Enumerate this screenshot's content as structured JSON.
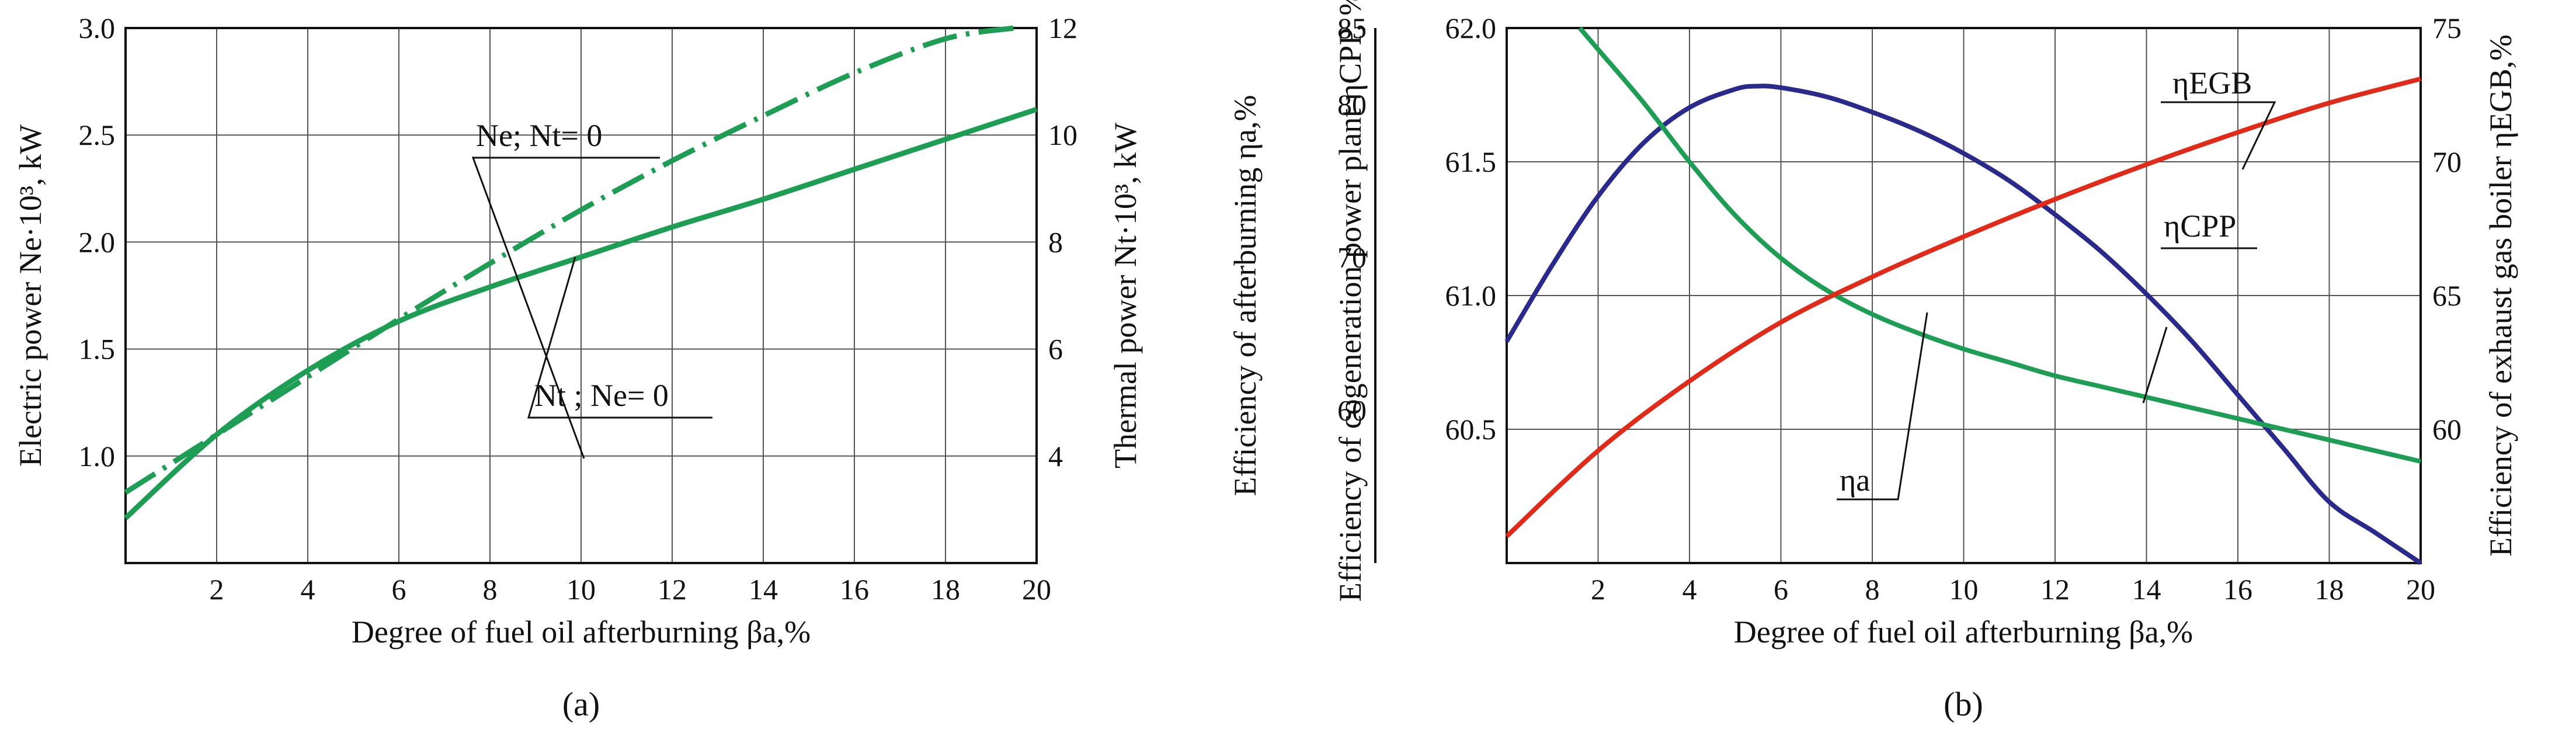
{
  "figure": {
    "captions": [
      "(a)",
      "(b)"
    ]
  },
  "chart_data": [
    {
      "id": "a",
      "type": "line",
      "caption": "(a)",
      "xlabel": "Degree of fuel oil afterburning βa,%",
      "ylabel_left": "Electric power Ne·10³, kW",
      "ylabel_right": "Thermal power Nt·10³, kW",
      "xlim": [
        0,
        20
      ],
      "ylim_left": [
        0.5,
        3.0
      ],
      "ylim_right": [
        2,
        12
      ],
      "x_ticks": [
        2,
        4,
        6,
        8,
        10,
        12,
        14,
        16,
        18,
        20
      ],
      "y_ticks_left": [
        "1.0",
        "1.5",
        "2.0",
        "2.5",
        "3.0"
      ],
      "y_ticks_right": [
        "4",
        "6",
        "8",
        "10",
        "12"
      ],
      "grid": true,
      "colors": {
        "series": "#1e9e55",
        "axes": "#111111",
        "grid": "#555555"
      },
      "series": [
        {
          "name": "Ne; Nt= 0",
          "axis": "left",
          "style": "dashed",
          "x": [
            0,
            2,
            4,
            6,
            8,
            10,
            12,
            14,
            16,
            18,
            19.5
          ],
          "y": [
            0.83,
            1.1,
            1.37,
            1.64,
            1.9,
            2.15,
            2.38,
            2.59,
            2.79,
            2.95,
            3.0
          ]
        },
        {
          "name": "Nt ; Ne= 0",
          "axis": "left",
          "style": "solid",
          "x": [
            0,
            2,
            4,
            6,
            8,
            10,
            12,
            14,
            16,
            18,
            20
          ],
          "y": [
            0.71,
            1.1,
            1.4,
            1.63,
            1.79,
            1.93,
            2.07,
            2.2,
            2.34,
            2.48,
            2.62
          ]
        }
      ],
      "annotations": [
        {
          "label": "Ne; Nt= 0",
          "series": "Ne; Nt= 0"
        },
        {
          "label": "Nt ; Ne= 0",
          "series": "Nt ; Ne= 0"
        }
      ]
    },
    {
      "id": "b",
      "type": "line",
      "caption": "(b)",
      "xlabel": "Degree of fuel oil afterburning βa,%",
      "ylabel_left_outer": "Efficiency of afterburning ηa,%",
      "ylabel_left_inner": "Efficiency of cogeneration power plant ηCPP, %",
      "ylabel_right": "Efficiency of exhaust gas boiler ηEGB,%",
      "xlim": [
        0,
        20
      ],
      "ylim_a": [
        50,
        85
      ],
      "ylim_cpp": [
        60.0,
        62.0
      ],
      "ylim_egb": [
        55,
        75
      ],
      "x_ticks": [
        2,
        4,
        6,
        8,
        10,
        12,
        14,
        16,
        18,
        20
      ],
      "y_ticks_a": [
        "60",
        "70",
        "80",
        "85"
      ],
      "y_ticks_cpp": [
        "60.5",
        "61.0",
        "61.5",
        "62.0"
      ],
      "y_ticks_egb": [
        "60",
        "65",
        "70",
        "75"
      ],
      "grid": true,
      "colors": {
        "eta_a": "#2a2a8c",
        "eta_cpp": "#1e9e55",
        "eta_egb": "#e02a1a",
        "axes": "#111111",
        "grid": "#555555"
      },
      "series": [
        {
          "name": "ηa",
          "axis": "a",
          "color": "#2a2a8c",
          "x": [
            0,
            1,
            2,
            3,
            4,
            5,
            5.5,
            6,
            7,
            8,
            9,
            10,
            11,
            12,
            13,
            14,
            15,
            16,
            17,
            18,
            19,
            20
          ],
          "y": [
            64.5,
            69.5,
            74.0,
            77.5,
            79.8,
            81.0,
            81.2,
            81.1,
            80.5,
            79.5,
            78.3,
            76.8,
            75.0,
            72.8,
            70.4,
            67.6,
            64.5,
            61.0,
            57.5,
            54.0,
            52.0,
            50.0
          ]
        },
        {
          "name": "ηCPP",
          "axis": "cpp",
          "color": "#1e9e55",
          "x": [
            1.6,
            2,
            3,
            4,
            5,
            6,
            7,
            8,
            9,
            10,
            11,
            12,
            13,
            14,
            15,
            16,
            17,
            18,
            19,
            20
          ],
          "y": [
            62.0,
            61.92,
            61.72,
            61.5,
            61.3,
            61.14,
            61.02,
            60.93,
            60.86,
            60.8,
            60.75,
            60.7,
            60.66,
            60.62,
            60.58,
            60.54,
            60.5,
            60.46,
            60.42,
            60.38
          ]
        },
        {
          "name": "ηEGB",
          "axis": "egb",
          "color": "#e02a1a",
          "x": [
            0,
            2,
            4,
            6,
            8,
            10,
            12,
            14,
            16,
            18,
            20
          ],
          "y": [
            56.0,
            59.2,
            61.8,
            64.0,
            65.7,
            67.2,
            68.6,
            69.9,
            71.1,
            72.2,
            73.1
          ]
        }
      ],
      "annotations": [
        {
          "label": "ηEGB",
          "series": "ηEGB"
        },
        {
          "label": "ηCPP",
          "series": "ηCPP"
        },
        {
          "label": "ηa",
          "series": "ηa"
        }
      ]
    }
  ]
}
